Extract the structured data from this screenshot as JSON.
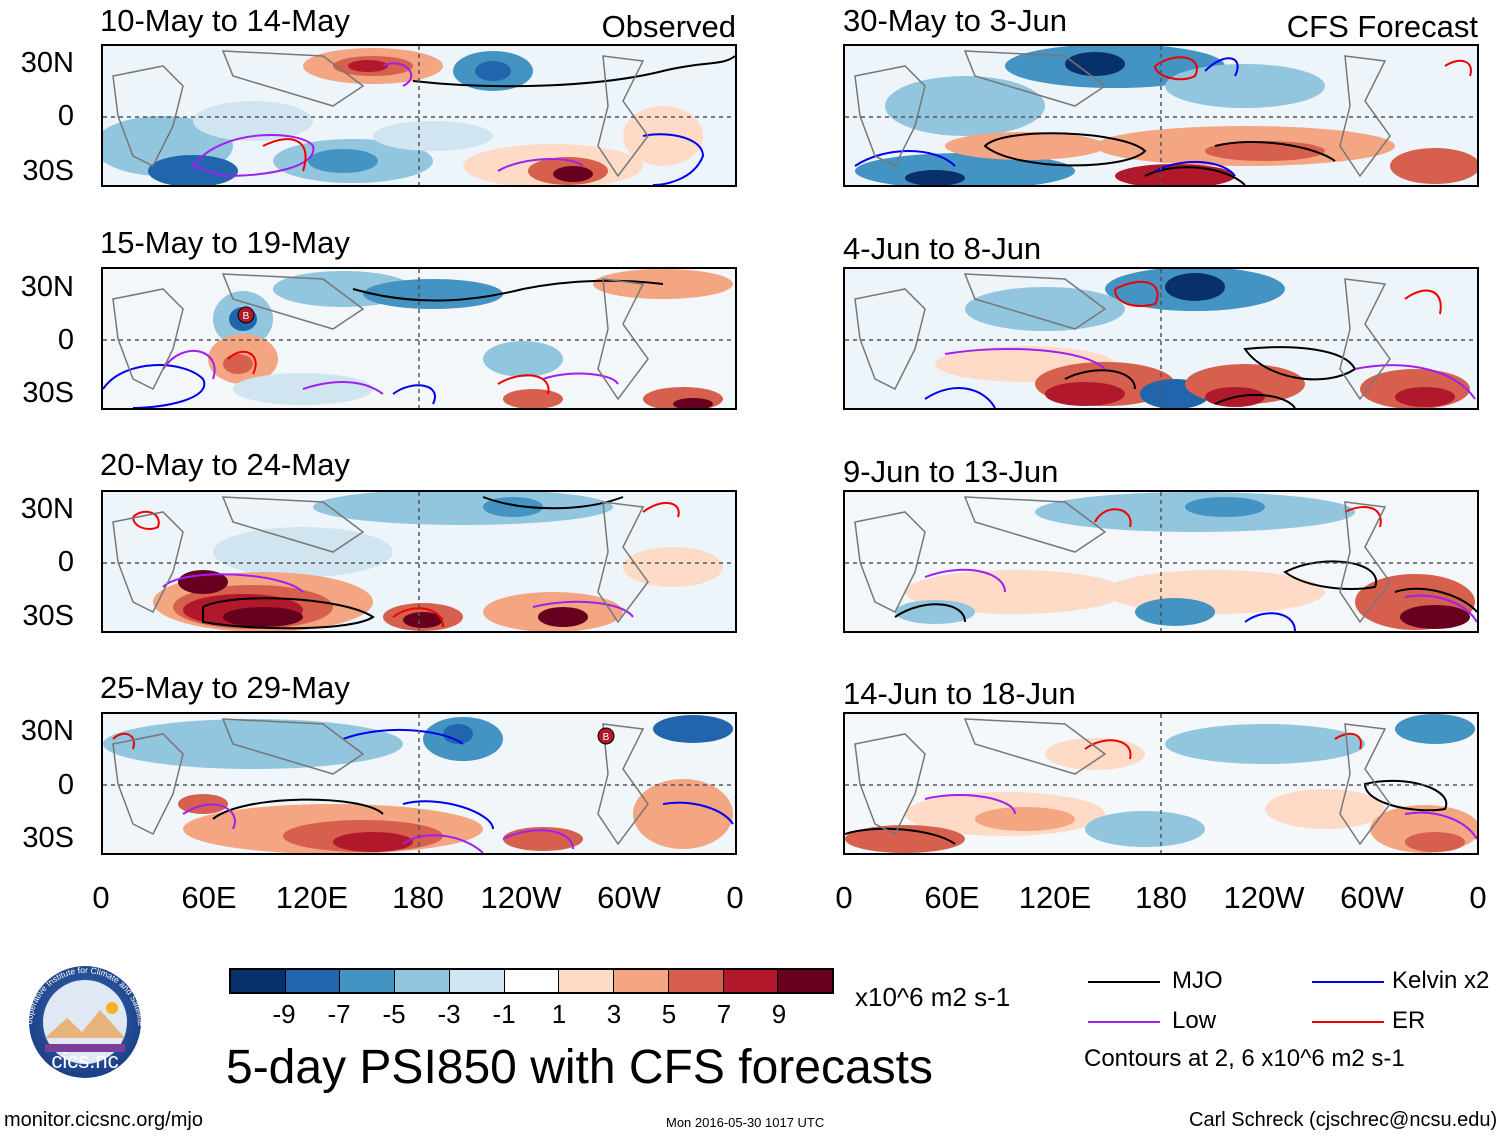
{
  "header": {
    "observed_label": "Observed",
    "forecast_label": "CFS Forecast"
  },
  "observed_panels": [
    {
      "title": "10-May to 14-May"
    },
    {
      "title": "15-May to 19-May"
    },
    {
      "title": "20-May to 24-May"
    },
    {
      "title": "25-May to 29-May"
    }
  ],
  "forecast_panels": [
    {
      "title": "30-May to 3-Jun"
    },
    {
      "title": "4-Jun to 8-Jun"
    },
    {
      "title": "9-Jun to 13-Jun"
    },
    {
      "title": "14-Jun to 18-Jun"
    }
  ],
  "lat_labels": [
    "30N",
    "0",
    "30S"
  ],
  "lon_labels": [
    "0",
    "60E",
    "120E",
    "180",
    "120W",
    "60W",
    "0"
  ],
  "storm_markers": [
    "B",
    "B"
  ],
  "colorbar": {
    "ticks": [
      "-9",
      "-7",
      "-5",
      "-3",
      "-1",
      "1",
      "3",
      "5",
      "7",
      "9"
    ],
    "colors": [
      "#08306b",
      "#2166ac",
      "#4393c3",
      "#92c5de",
      "#d1e5f0",
      "#ffffff",
      "#fddbc7",
      "#f4a582",
      "#d6604d",
      "#b2182b",
      "#67001f"
    ],
    "units": "x10^6 m2 s-1"
  },
  "legend": {
    "items": [
      {
        "label": "MJO",
        "color": "#000000"
      },
      {
        "label": "Kelvin x2",
        "color": "#0000ee"
      },
      {
        "label": "Low",
        "color": "#a020f0"
      },
      {
        "label": "ER",
        "color": "#ee0000"
      }
    ],
    "note": "Contours at 2, 6 x10^6 m2 s-1"
  },
  "footer": {
    "title": "5-day PSI850 with CFS forecasts",
    "url": "monitor.cicsnc.org/mjo",
    "timestamp": "Mon 2016-05-30 1017 UTC",
    "credit": "Carl Schreck (cjschrec@ncsu.edu)",
    "logo_text": "cics.nc",
    "logo_ring_text": "Cooperative Institute for Climate and Satellites"
  }
}
